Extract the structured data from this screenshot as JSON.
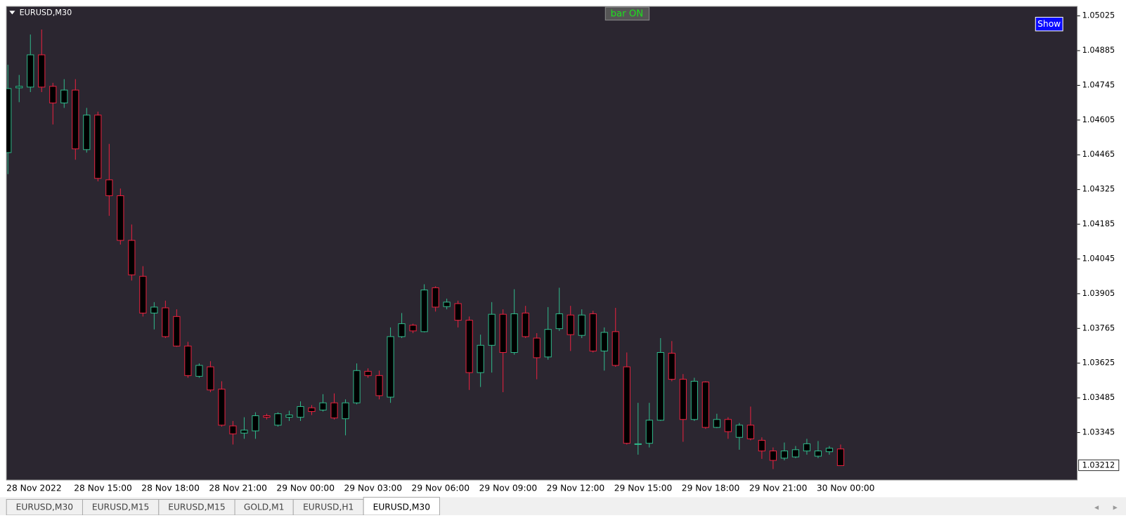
{
  "chart_data": {
    "type": "candlestick",
    "symbol": "EURUSD,M30",
    "categories": [
      "28 Nov 2022",
      null,
      null,
      null,
      null,
      null,
      "28 Nov 15:00",
      null,
      null,
      null,
      null,
      null,
      "28 Nov 18:00",
      null,
      null,
      null,
      null,
      null,
      "28 Nov 21:00",
      null,
      null,
      null,
      null,
      null,
      "29 Nov 00:00",
      null,
      null,
      null,
      null,
      null,
      "29 Nov 03:00",
      null,
      null,
      null,
      null,
      null,
      "29 Nov 06:00",
      null,
      null,
      null,
      null,
      null,
      "29 Nov 09:00",
      null,
      null,
      null,
      null,
      null,
      "29 Nov 12:00",
      null,
      null,
      null,
      null,
      null,
      "29 Nov 15:00",
      null,
      null,
      null,
      null,
      null,
      "29 Nov 18:00",
      null,
      null,
      null,
      null,
      null,
      "29 Nov 21:00",
      null,
      null,
      null,
      null,
      null,
      "30 Nov 00:00",
      null,
      null
    ],
    "open": [
      1.04474,
      1.04735,
      1.04738,
      1.04868,
      1.04741,
      1.04674,
      1.04726,
      1.04486,
      1.04625,
      1.04364,
      1.043,
      1.0412,
      1.03975,
      1.03827,
      1.03848,
      1.03813,
      1.03694,
      1.03572,
      1.0361,
      1.0352,
      1.03372,
      1.03343,
      1.03352,
      1.03413,
      1.03375,
      1.03407,
      1.03407,
      1.03445,
      1.03436,
      1.03465,
      1.03401,
      1.03465,
      1.03592,
      1.03575,
      1.03488,
      1.03732,
      1.03778,
      1.03752,
      1.03929,
      1.03853,
      1.03865,
      1.03798,
      1.03587,
      1.03697,
      1.03822,
      1.03668,
      1.03827,
      1.03726,
      1.0365,
      1.03764,
      1.03819,
      1.03737,
      1.03824,
      1.03674,
      1.03752,
      1.0361,
      1.03297,
      1.03302,
      1.03395,
      1.03665,
      1.0356,
      1.03398,
      1.03549,
      1.03366,
      1.03398,
      1.03326,
      1.03375,
      1.03314,
      1.03271,
      1.03242,
      1.03247,
      1.03271,
      1.0325,
      1.03268,
      1.03279
    ],
    "high": [
      1.04828,
      1.04787,
      1.0495,
      1.0497,
      1.04755,
      1.0477,
      1.0477,
      1.04654,
      1.04639,
      1.04509,
      1.04329,
      1.04184,
      1.04016,
      1.03871,
      1.03877,
      1.03842,
      1.03711,
      1.03624,
      1.03633,
      1.03552,
      1.03392,
      1.03407,
      1.03427,
      1.03421,
      1.03427,
      1.03433,
      1.03471,
      1.03456,
      1.035,
      1.03503,
      1.03479,
      1.03624,
      1.03604,
      1.03595,
      1.03769,
      1.03827,
      1.03784,
      1.03943,
      1.03935,
      1.03885,
      1.03877,
      1.03813,
      1.0374,
      1.03871,
      1.03842,
      1.03923,
      1.03856,
      1.03746,
      1.03851,
      1.03929,
      1.03856,
      1.03842,
      1.03836,
      1.03769,
      1.03848,
      1.03668,
      1.03465,
      1.03465,
      1.03726,
      1.03714,
      1.03581,
      1.03566,
      1.03552,
      1.03421,
      1.03407,
      1.03384,
      1.0345,
      1.03326,
      1.03285,
      1.03305,
      1.03291,
      1.0332,
      1.03311,
      1.03291,
      1.03297
    ],
    "low": [
      1.04387,
      1.04677,
      1.04718,
      1.04718,
      1.04587,
      1.04654,
      1.04445,
      1.04474,
      1.04358,
      1.04219,
      1.04103,
      1.03958,
      1.03813,
      1.03761,
      1.03726,
      1.03691,
      1.03566,
      1.03566,
      1.03508,
      1.03369,
      1.03297,
      1.0332,
      1.0332,
      1.03398,
      1.03369,
      1.03392,
      1.03392,
      1.03416,
      1.0343,
      1.03398,
      1.03334,
      1.03459,
      1.03566,
      1.03479,
      1.03465,
      1.03726,
      1.03746,
      1.03749,
      1.03833,
      1.03842,
      1.03769,
      1.03517,
      1.03529,
      1.03587,
      1.03508,
      1.03659,
      1.03726,
      1.0356,
      1.03639,
      1.03755,
      1.03674,
      1.03726,
      1.03668,
      1.03595,
      1.0361,
      1.03297,
      1.03256,
      1.03285,
      1.03392,
      1.03552,
      1.03308,
      1.03392,
      1.0336,
      1.03363,
      1.0332,
      1.03276,
      1.03314,
      1.03239,
      1.03198,
      1.03233,
      1.03242,
      1.03256,
      1.03242,
      1.03256,
      1.03212
    ],
    "close": [
      1.04732,
      1.04741,
      1.04868,
      1.04738,
      1.04674,
      1.04726,
      1.04489,
      1.04625,
      1.0437,
      1.043,
      1.0412,
      1.03981,
      1.03827,
      1.03851,
      1.03732,
      1.03694,
      1.03575,
      1.03616,
      1.03517,
      1.03375,
      1.0334,
      1.03355,
      1.03413,
      1.03407,
      1.03421,
      1.03416,
      1.0345,
      1.0343,
      1.03465,
      1.03404,
      1.03465,
      1.03595,
      1.03575,
      1.03494,
      1.03732,
      1.03784,
      1.03755,
      1.0392,
      1.03851,
      1.03871,
      1.03798,
      1.03587,
      1.03697,
      1.03822,
      1.03668,
      1.03824,
      1.03732,
      1.03647,
      1.03761,
      1.03824,
      1.0374,
      1.03819,
      1.03674,
      1.03749,
      1.03616,
      1.03302,
      1.033,
      1.03395,
      1.03668,
      1.0356,
      1.03398,
      1.03552,
      1.03366,
      1.03398,
      1.03349,
      1.03375,
      1.0332,
      1.03271,
      1.03233,
      1.03271,
      1.03276,
      1.033,
      1.03271,
      1.03282,
      1.03212
    ],
    "up_color": "#2fb88a",
    "down_color": "#e8213f",
    "background": "#2b2630",
    "ylim": [
      1.03154,
      1.05063
    ],
    "yticks": [
      1.05025,
      1.04885,
      1.04745,
      1.04605,
      1.04465,
      1.04325,
      1.04185,
      1.04045,
      1.03905,
      1.03765,
      1.03625,
      1.03485,
      1.03345
    ],
    "last_price": 1.03212
  },
  "buttons": {
    "bar": "bar ON",
    "show": "Show"
  },
  "tabs": [
    "EURUSD,M30",
    "EURUSD,M15",
    "EURUSD,M15",
    "GOLD,M1",
    "EURUSD,H1",
    "EURUSD,M30"
  ],
  "active_tab": 5
}
